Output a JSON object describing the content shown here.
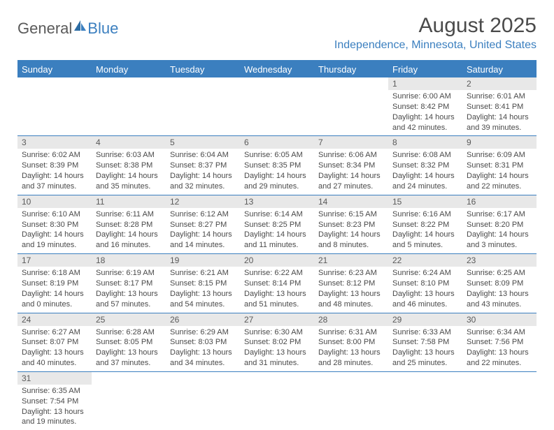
{
  "logo": {
    "text1": "General",
    "text2": "Blue"
  },
  "title": "August 2025",
  "location": "Independence, Minnesota, United States",
  "colors": {
    "header_bg": "#3b7fbf",
    "header_text": "#ffffff",
    "daynum_bg": "#e8e8e8",
    "text": "#4a4a4a",
    "accent": "#3b7fbf"
  },
  "day_headers": [
    "Sunday",
    "Monday",
    "Tuesday",
    "Wednesday",
    "Thursday",
    "Friday",
    "Saturday"
  ],
  "weeks": [
    [
      null,
      null,
      null,
      null,
      null,
      {
        "n": "1",
        "sr": "Sunrise: 6:00 AM",
        "ss": "Sunset: 8:42 PM",
        "dl": "Daylight: 14 hours and 42 minutes."
      },
      {
        "n": "2",
        "sr": "Sunrise: 6:01 AM",
        "ss": "Sunset: 8:41 PM",
        "dl": "Daylight: 14 hours and 39 minutes."
      }
    ],
    [
      {
        "n": "3",
        "sr": "Sunrise: 6:02 AM",
        "ss": "Sunset: 8:39 PM",
        "dl": "Daylight: 14 hours and 37 minutes."
      },
      {
        "n": "4",
        "sr": "Sunrise: 6:03 AM",
        "ss": "Sunset: 8:38 PM",
        "dl": "Daylight: 14 hours and 35 minutes."
      },
      {
        "n": "5",
        "sr": "Sunrise: 6:04 AM",
        "ss": "Sunset: 8:37 PM",
        "dl": "Daylight: 14 hours and 32 minutes."
      },
      {
        "n": "6",
        "sr": "Sunrise: 6:05 AM",
        "ss": "Sunset: 8:35 PM",
        "dl": "Daylight: 14 hours and 29 minutes."
      },
      {
        "n": "7",
        "sr": "Sunrise: 6:06 AM",
        "ss": "Sunset: 8:34 PM",
        "dl": "Daylight: 14 hours and 27 minutes."
      },
      {
        "n": "8",
        "sr": "Sunrise: 6:08 AM",
        "ss": "Sunset: 8:32 PM",
        "dl": "Daylight: 14 hours and 24 minutes."
      },
      {
        "n": "9",
        "sr": "Sunrise: 6:09 AM",
        "ss": "Sunset: 8:31 PM",
        "dl": "Daylight: 14 hours and 22 minutes."
      }
    ],
    [
      {
        "n": "10",
        "sr": "Sunrise: 6:10 AM",
        "ss": "Sunset: 8:30 PM",
        "dl": "Daylight: 14 hours and 19 minutes."
      },
      {
        "n": "11",
        "sr": "Sunrise: 6:11 AM",
        "ss": "Sunset: 8:28 PM",
        "dl": "Daylight: 14 hours and 16 minutes."
      },
      {
        "n": "12",
        "sr": "Sunrise: 6:12 AM",
        "ss": "Sunset: 8:27 PM",
        "dl": "Daylight: 14 hours and 14 minutes."
      },
      {
        "n": "13",
        "sr": "Sunrise: 6:14 AM",
        "ss": "Sunset: 8:25 PM",
        "dl": "Daylight: 14 hours and 11 minutes."
      },
      {
        "n": "14",
        "sr": "Sunrise: 6:15 AM",
        "ss": "Sunset: 8:23 PM",
        "dl": "Daylight: 14 hours and 8 minutes."
      },
      {
        "n": "15",
        "sr": "Sunrise: 6:16 AM",
        "ss": "Sunset: 8:22 PM",
        "dl": "Daylight: 14 hours and 5 minutes."
      },
      {
        "n": "16",
        "sr": "Sunrise: 6:17 AM",
        "ss": "Sunset: 8:20 PM",
        "dl": "Daylight: 14 hours and 3 minutes."
      }
    ],
    [
      {
        "n": "17",
        "sr": "Sunrise: 6:18 AM",
        "ss": "Sunset: 8:19 PM",
        "dl": "Daylight: 14 hours and 0 minutes."
      },
      {
        "n": "18",
        "sr": "Sunrise: 6:19 AM",
        "ss": "Sunset: 8:17 PM",
        "dl": "Daylight: 13 hours and 57 minutes."
      },
      {
        "n": "19",
        "sr": "Sunrise: 6:21 AM",
        "ss": "Sunset: 8:15 PM",
        "dl": "Daylight: 13 hours and 54 minutes."
      },
      {
        "n": "20",
        "sr": "Sunrise: 6:22 AM",
        "ss": "Sunset: 8:14 PM",
        "dl": "Daylight: 13 hours and 51 minutes."
      },
      {
        "n": "21",
        "sr": "Sunrise: 6:23 AM",
        "ss": "Sunset: 8:12 PM",
        "dl": "Daylight: 13 hours and 48 minutes."
      },
      {
        "n": "22",
        "sr": "Sunrise: 6:24 AM",
        "ss": "Sunset: 8:10 PM",
        "dl": "Daylight: 13 hours and 46 minutes."
      },
      {
        "n": "23",
        "sr": "Sunrise: 6:25 AM",
        "ss": "Sunset: 8:09 PM",
        "dl": "Daylight: 13 hours and 43 minutes."
      }
    ],
    [
      {
        "n": "24",
        "sr": "Sunrise: 6:27 AM",
        "ss": "Sunset: 8:07 PM",
        "dl": "Daylight: 13 hours and 40 minutes."
      },
      {
        "n": "25",
        "sr": "Sunrise: 6:28 AM",
        "ss": "Sunset: 8:05 PM",
        "dl": "Daylight: 13 hours and 37 minutes."
      },
      {
        "n": "26",
        "sr": "Sunrise: 6:29 AM",
        "ss": "Sunset: 8:03 PM",
        "dl": "Daylight: 13 hours and 34 minutes."
      },
      {
        "n": "27",
        "sr": "Sunrise: 6:30 AM",
        "ss": "Sunset: 8:02 PM",
        "dl": "Daylight: 13 hours and 31 minutes."
      },
      {
        "n": "28",
        "sr": "Sunrise: 6:31 AM",
        "ss": "Sunset: 8:00 PM",
        "dl": "Daylight: 13 hours and 28 minutes."
      },
      {
        "n": "29",
        "sr": "Sunrise: 6:33 AM",
        "ss": "Sunset: 7:58 PM",
        "dl": "Daylight: 13 hours and 25 minutes."
      },
      {
        "n": "30",
        "sr": "Sunrise: 6:34 AM",
        "ss": "Sunset: 7:56 PM",
        "dl": "Daylight: 13 hours and 22 minutes."
      }
    ],
    [
      {
        "n": "31",
        "sr": "Sunrise: 6:35 AM",
        "ss": "Sunset: 7:54 PM",
        "dl": "Daylight: 13 hours and 19 minutes."
      },
      null,
      null,
      null,
      null,
      null,
      null
    ]
  ]
}
